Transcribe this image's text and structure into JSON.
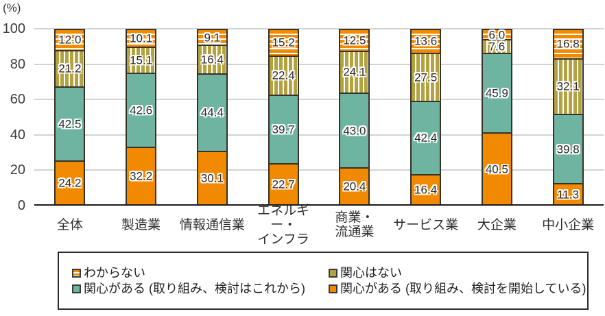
{
  "chart_data": {
    "type": "bar",
    "stacked": true,
    "percent_stacked": true,
    "unit_label": "(%)",
    "ylim": [
      0,
      100
    ],
    "y_ticks": [
      0,
      20,
      40,
      60,
      80,
      100
    ],
    "grid": true,
    "categories": [
      "全体",
      "製造業",
      "情報通信業",
      "エネルギー・\nインフラ",
      "商業・\n流通業",
      "サービス業",
      "大企業",
      "中小企業"
    ],
    "series": [
      {
        "name": "関心がある (取り組み、検討を開始している)",
        "style": "orange",
        "values": [
          24.2,
          32.2,
          30.1,
          22.7,
          20.4,
          16.4,
          40.5,
          11.3
        ]
      },
      {
        "name": "関心がある (取り組み、検討はこれから)",
        "style": "teal",
        "values": [
          42.5,
          42.6,
          44.4,
          39.7,
          43.0,
          42.4,
          45.9,
          39.8
        ]
      },
      {
        "name": "関心はない",
        "style": "olive-stripe",
        "values": [
          21.2,
          15.1,
          16.4,
          22.4,
          24.1,
          27.5,
          7.6,
          32.1
        ]
      },
      {
        "name": "わからない",
        "style": "orange-stripe",
        "values": [
          12.0,
          10.1,
          9.1,
          15.2,
          12.5,
          13.6,
          6.0,
          16.8
        ]
      }
    ],
    "legend": {
      "position": "bottom",
      "items": [
        {
          "label": "わからない",
          "swatch": "orange-stripe"
        },
        {
          "label": "関心はない",
          "swatch": "olive"
        },
        {
          "label": "関心がある (取り組み、検討はこれから)",
          "swatch": "teal"
        },
        {
          "label": "関心がある (取り組み、検討を開始している)",
          "swatch": "orange"
        }
      ]
    },
    "colors": {
      "orange": "#F18A00",
      "teal": "#6FB3A1",
      "olive": "#B2A340",
      "border": "#363129",
      "grid": "#D3D3D3",
      "axis": "#1A1A1A"
    }
  }
}
